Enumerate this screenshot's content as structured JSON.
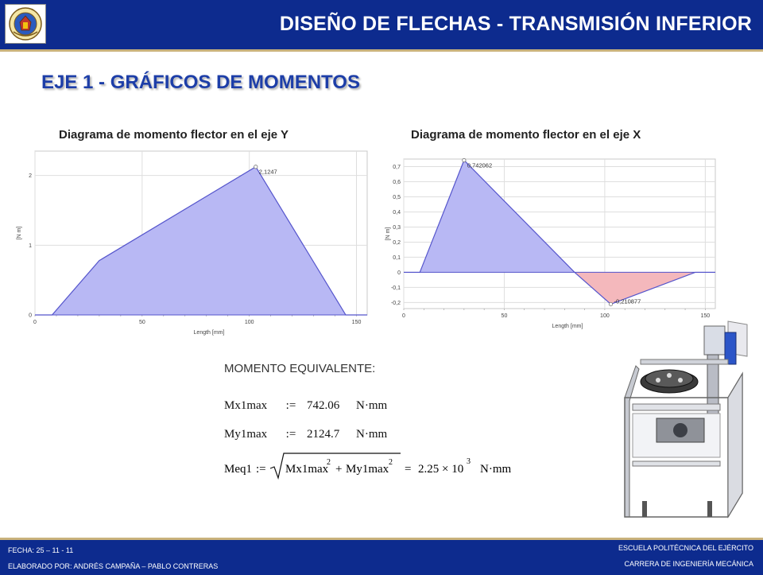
{
  "header": {
    "title": "DISEÑO DE FLECHAS - TRANSMISIÓN INFERIOR",
    "logo_icon": "university-crest-icon"
  },
  "section_title": "EJE 1 - GRÁFICOS DE MOMENTOS",
  "chart_data": [
    {
      "type": "area",
      "title": "Diagrama de momento flector en el eje Y",
      "xlabel": "Length [mm]",
      "ylabel": "[N m]",
      "xlim": [
        0,
        155
      ],
      "ylim": [
        0,
        2.35
      ],
      "xticks": [
        0,
        50,
        100,
        150
      ],
      "yticks": [
        0,
        1,
        2
      ],
      "ytick_labels": [
        "0",
        "1",
        "2"
      ],
      "grid": true,
      "fill_color": "#b8b8f4",
      "line_color": "#5555cc",
      "x": [
        0,
        8,
        30,
        103,
        145,
        155
      ],
      "y": [
        0,
        0,
        0.78,
        2.1247,
        0,
        0
      ],
      "annotations": [
        {
          "x": 103,
          "y": 2.1247,
          "text": "2,1247"
        }
      ]
    },
    {
      "type": "area",
      "title": "Diagrama de momento flector en el eje X",
      "xlabel": "Length [mm]",
      "ylabel": "[N m]",
      "xlim": [
        0,
        155
      ],
      "ylim": [
        -0.24,
        0.75
      ],
      "xticks": [
        0,
        50,
        100,
        150
      ],
      "yticks": [
        -0.2,
        -0.1,
        0,
        0.1,
        0.2,
        0.3,
        0.4,
        0.5,
        0.6,
        0.7
      ],
      "ytick_labels": [
        "-0,2",
        "-0,1",
        "0",
        "0,1",
        "0,2",
        "0,3",
        "0,4",
        "0,5",
        "0,6",
        "0,7"
      ],
      "grid": true,
      "positive_fill_color": "#b8b8f4",
      "negative_fill_color": "#f4b8bc",
      "line_color": "#5555cc",
      "x": [
        0,
        8,
        30,
        85,
        103,
        145,
        155
      ],
      "y": [
        0,
        0,
        0.742062,
        0,
        -0.210877,
        0,
        0
      ],
      "annotations": [
        {
          "x": 30,
          "y": 0.742062,
          "text": "0,742062"
        },
        {
          "x": 103,
          "y": -0.210877,
          "text": "-0,210877"
        }
      ]
    }
  ],
  "formula": {
    "heading": "MOMENTO EQUIVALENTE:",
    "rows": [
      {
        "name": "Mx1max",
        "assign": ":=",
        "value": "742.06",
        "unit": "N·mm"
      },
      {
        "name": "My1max",
        "assign": ":=",
        "value": "2124.7",
        "unit": "N·mm"
      }
    ],
    "meq": {
      "name": "Meq1",
      "assign": ":=",
      "term1": "Mx1max",
      "plus": "+",
      "term2": "My1max",
      "exponent": "2",
      "equals": "=",
      "mantissa": "2.25 × 10",
      "power": "3",
      "unit": "N·mm"
    }
  },
  "machine_icon": "shaft-machine-3d-model-icon",
  "footer": {
    "date": "FECHA: 25 – 11 - 11",
    "authors": "ELABORADO POR: ANDRÉS CAMPAÑA – PABLO CONTRERAS",
    "school": "ESCUELA POLITÉCNICA DEL EJÉRCITO",
    "career": "CARRERA DE INGENIERÍA MECÁNICA"
  }
}
